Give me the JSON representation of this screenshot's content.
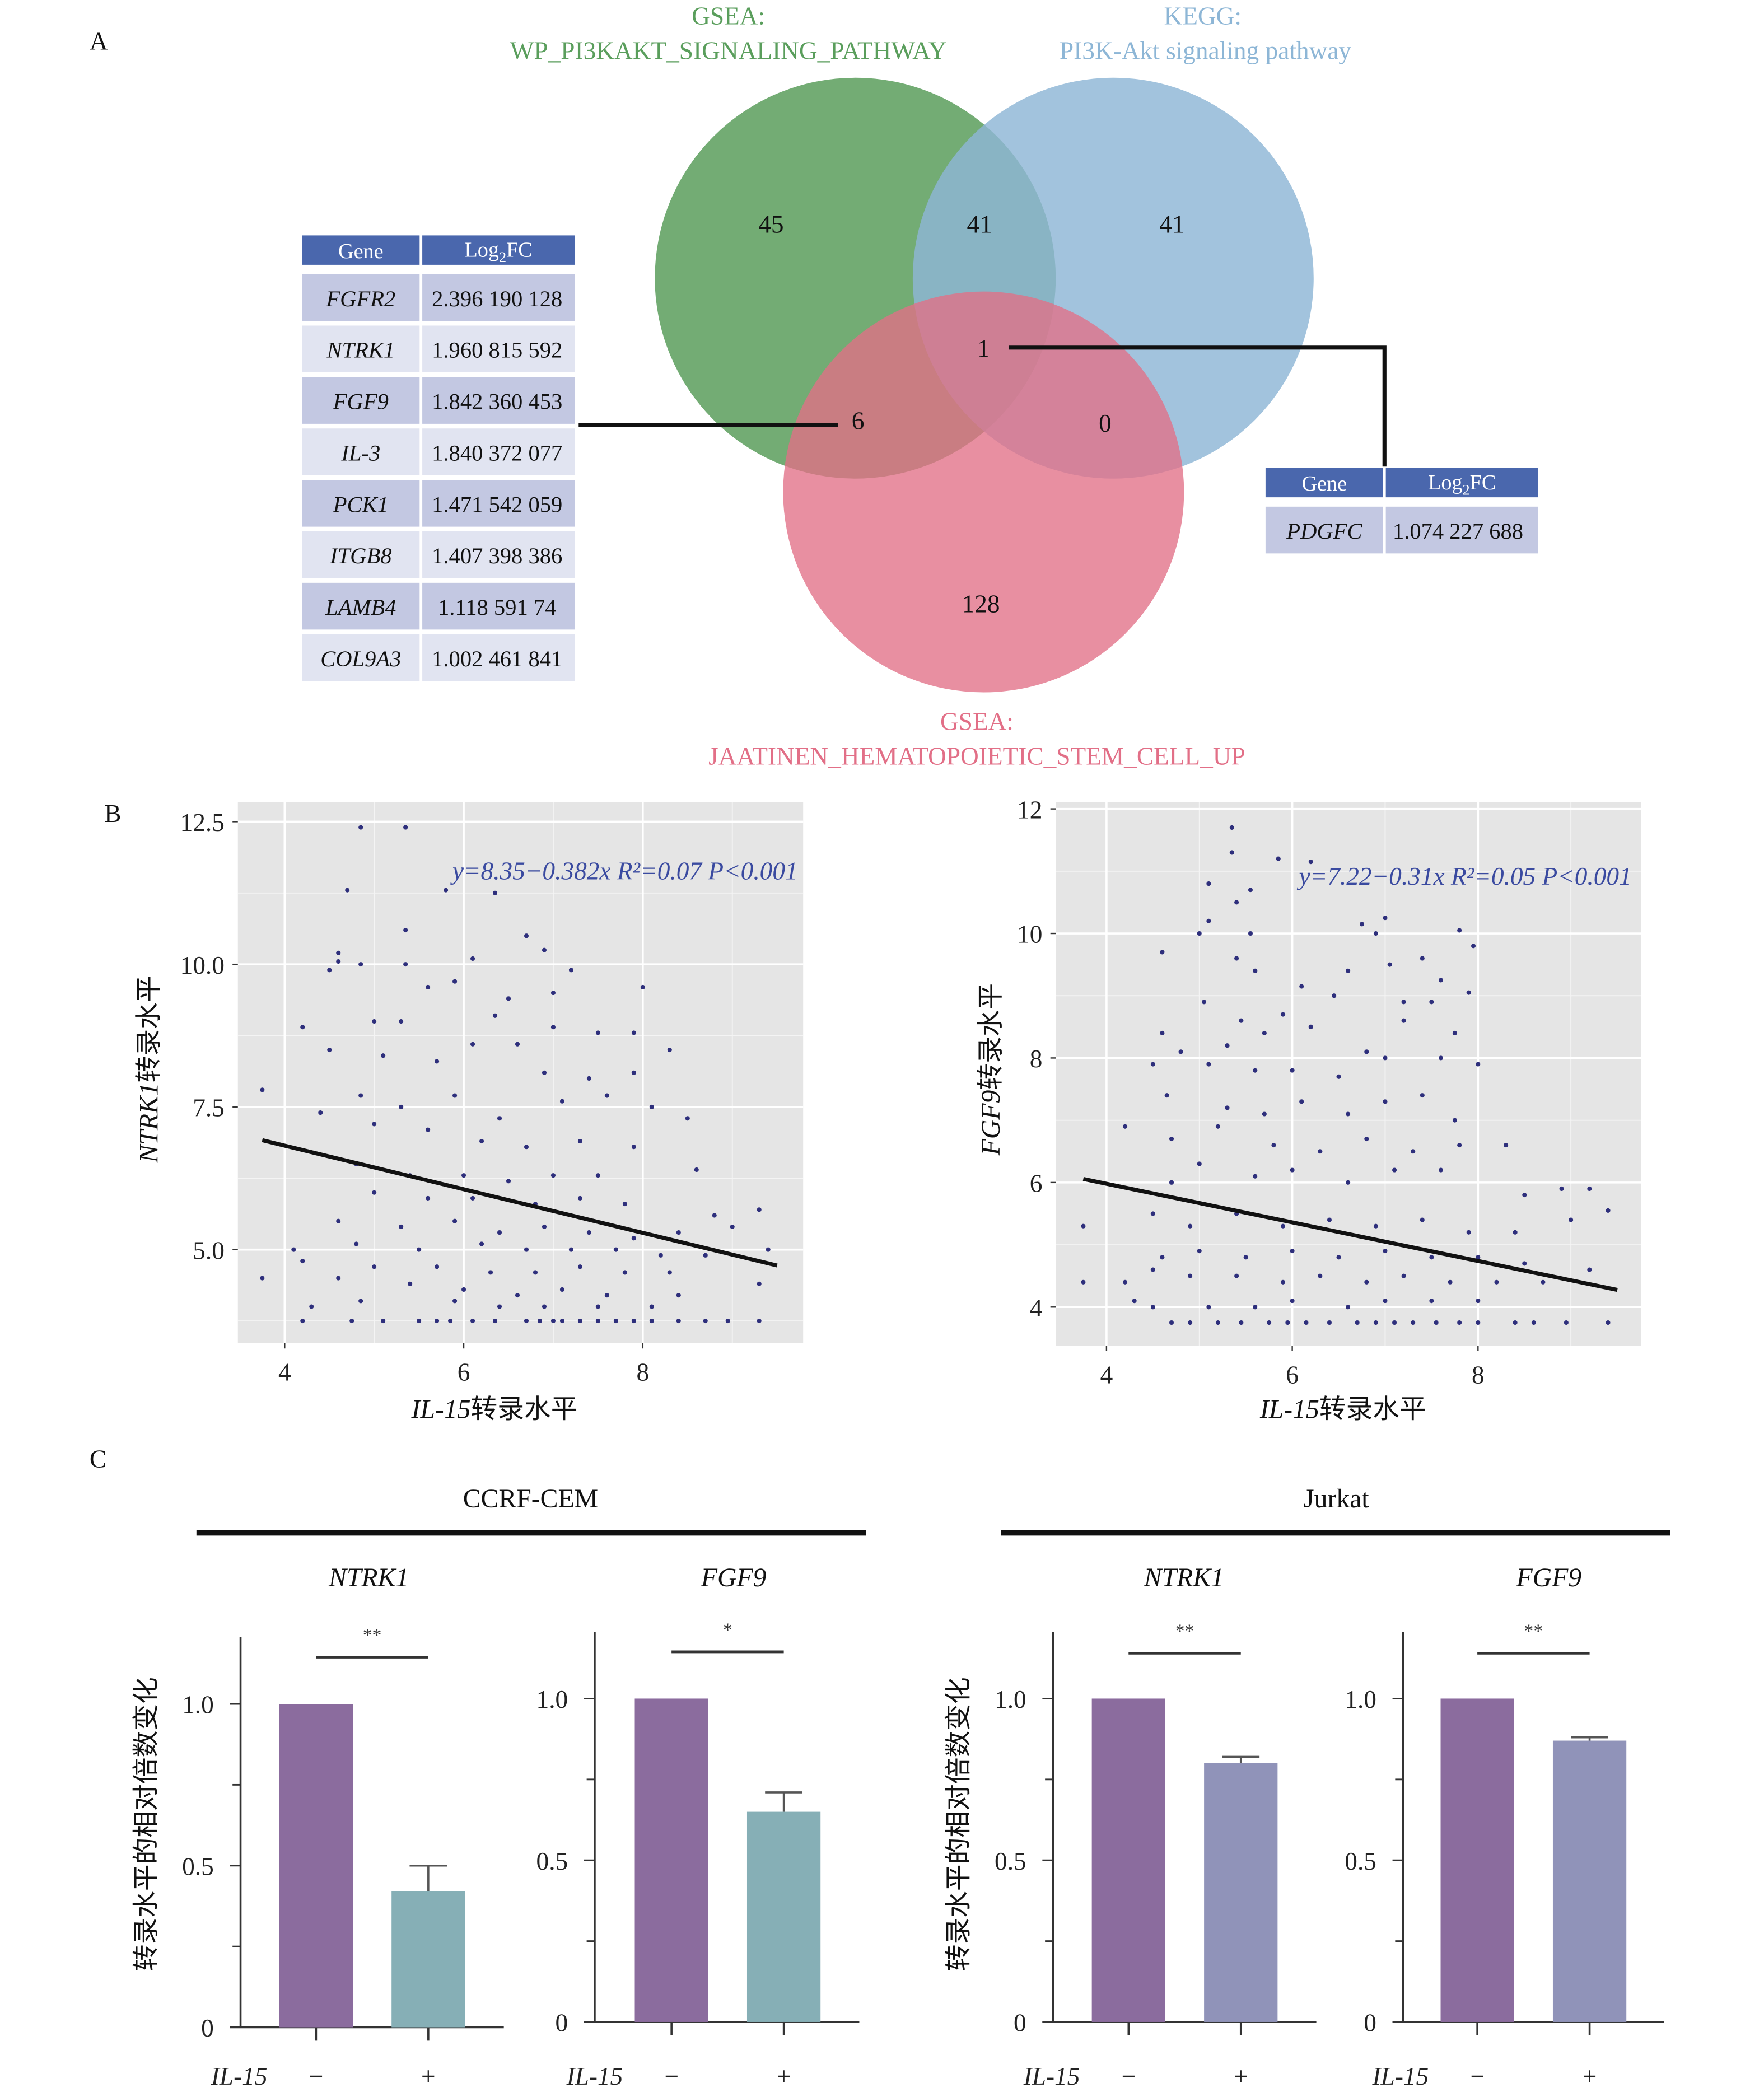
{
  "panel_labels": {
    "a": "A",
    "b": "B",
    "c": "C"
  },
  "venn": {
    "sets": [
      {
        "prefix": "GSEA:",
        "name": "WP_PI3KAKT_SIGNALING_PATHWAY",
        "color": "#5a9e5c"
      },
      {
        "prefix": "KEGG:",
        "name": "PI3K-Akt signaling pathway",
        "color": "#8db6d6"
      },
      {
        "prefix": "GSEA:",
        "name": "JAATINEN_HEMATOPOIETIC_STEM_CELL_UP",
        "color": "#e26f87"
      }
    ],
    "counts": {
      "wp_only": "45",
      "wp_kegg": "41",
      "kegg_only": "41",
      "all_three": "1",
      "wp_jaatinen": "6",
      "kegg_jaatinen": "0",
      "jaatinen_only": "128"
    }
  },
  "left_table": {
    "header": {
      "gene": "Gene",
      "logfc_prefix": "Log",
      "logfc_sub": "2",
      "logfc_suffix": "FC"
    },
    "rows": [
      {
        "gene": "FGFR2",
        "value": "2.396 190 128",
        "highlight": true
      },
      {
        "gene": "NTRK1",
        "value": "1.960 815 592",
        "highlight": true
      },
      {
        "gene": "FGF9",
        "value": "1.842 360 453",
        "highlight": true
      },
      {
        "gene": "IL-3",
        "value": "1.840 372 077",
        "highlight": false
      },
      {
        "gene": "PCK1",
        "value": "1.471 542 059",
        "highlight": false
      },
      {
        "gene": "ITGB8",
        "value": "1.407 398 386",
        "highlight": false
      },
      {
        "gene": "LAMB4",
        "value": "1.118 591 74",
        "highlight": false
      },
      {
        "gene": "COL9A3",
        "value": "1.002 461 841",
        "highlight": false
      }
    ]
  },
  "right_table": {
    "header": {
      "gene": "Gene",
      "logfc_prefix": "Log",
      "logfc_sub": "2",
      "logfc_suffix": "FC"
    },
    "rows": [
      {
        "gene": "PDGFC",
        "value": "1.074 227 688"
      }
    ]
  },
  "colors": {
    "table_header": "#4a67ad",
    "row_dark": "#c3c8e2",
    "row_light": "#e1e4f1",
    "highlight_text": "#e0202a",
    "point": "#2e2f7c",
    "panel_bg": "#e5e5e5",
    "bar_control": "#8b6c9e",
    "bar_ccrf_il15": "#86afb6",
    "bar_jurkat_il15": "#9093b9"
  },
  "chart_data": [
    {
      "type": "scatter",
      "xlabel_italic": "IL-15",
      "xlabel_rest": "转录水平",
      "ylabel_italic": "NTRK1",
      "ylabel_rest": "转录水平",
      "xlim": [
        3.5,
        9.8
      ],
      "ylim": [
        3.3,
        12.8
      ],
      "xticks": [
        "4",
        "6",
        "8"
      ],
      "yticks": [
        "5.0",
        "7.5",
        "10.0",
        "12.5"
      ],
      "annotation": "y=8.35−0.382x  R²=0.07  P<0.001",
      "regression": {
        "intercept": 8.35,
        "slope": -0.382,
        "x_range": [
          3.75,
          9.5
        ]
      },
      "grid": true,
      "points": [
        [
          4.85,
          12.4
        ],
        [
          5.35,
          12.4
        ],
        [
          4.7,
          11.3
        ],
        [
          5.8,
          11.3
        ],
        [
          6.35,
          11.25
        ],
        [
          5.35,
          10.6
        ],
        [
          6.7,
          10.5
        ],
        [
          4.6,
          10.2
        ],
        [
          4.6,
          10.05
        ],
        [
          4.85,
          10.0
        ],
        [
          5.35,
          10.0
        ],
        [
          6.9,
          10.25
        ],
        [
          6.1,
          10.1
        ],
        [
          7.2,
          9.9
        ],
        [
          8.0,
          9.6
        ],
        [
          4.5,
          9.9
        ],
        [
          5.6,
          9.6
        ],
        [
          5.9,
          9.7
        ],
        [
          6.5,
          9.4
        ],
        [
          7.0,
          9.5
        ],
        [
          4.2,
          8.9
        ],
        [
          5.0,
          9.0
        ],
        [
          5.3,
          9.0
        ],
        [
          6.35,
          9.1
        ],
        [
          7.0,
          8.9
        ],
        [
          7.5,
          8.8
        ],
        [
          7.9,
          8.8
        ],
        [
          8.3,
          8.5
        ],
        [
          4.5,
          8.5
        ],
        [
          5.1,
          8.4
        ],
        [
          5.7,
          8.3
        ],
        [
          6.1,
          8.6
        ],
        [
          6.6,
          8.6
        ],
        [
          6.9,
          8.1
        ],
        [
          7.4,
          8.0
        ],
        [
          7.9,
          8.1
        ],
        [
          3.75,
          7.8
        ],
        [
          4.85,
          7.7
        ],
        [
          5.3,
          7.5
        ],
        [
          5.9,
          7.7
        ],
        [
          6.4,
          7.3
        ],
        [
          7.1,
          7.6
        ],
        [
          7.6,
          7.7
        ],
        [
          8.1,
          7.5
        ],
        [
          8.5,
          7.3
        ],
        [
          4.4,
          7.4
        ],
        [
          5.0,
          7.2
        ],
        [
          5.6,
          7.1
        ],
        [
          6.2,
          6.9
        ],
        [
          6.7,
          6.8
        ],
        [
          7.3,
          6.9
        ],
        [
          7.9,
          6.8
        ],
        [
          4.8,
          6.5
        ],
        [
          5.4,
          6.3
        ],
        [
          6.0,
          6.3
        ],
        [
          6.5,
          6.2
        ],
        [
          7.0,
          6.3
        ],
        [
          7.5,
          6.3
        ],
        [
          8.6,
          6.4
        ],
        [
          5.0,
          6.0
        ],
        [
          5.6,
          5.9
        ],
        [
          6.1,
          5.9
        ],
        [
          6.8,
          5.8
        ],
        [
          7.3,
          5.9
        ],
        [
          7.8,
          5.8
        ],
        [
          8.8,
          5.6
        ],
        [
          9.3,
          5.7
        ],
        [
          4.6,
          5.5
        ],
        [
          5.3,
          5.4
        ],
        [
          5.9,
          5.5
        ],
        [
          6.4,
          5.3
        ],
        [
          6.9,
          5.4
        ],
        [
          7.4,
          5.3
        ],
        [
          7.9,
          5.2
        ],
        [
          8.4,
          5.3
        ],
        [
          9.0,
          5.4
        ],
        [
          4.1,
          5.0
        ],
        [
          4.8,
          5.1
        ],
        [
          5.5,
          5.0
        ],
        [
          6.2,
          5.1
        ],
        [
          6.7,
          5.0
        ],
        [
          7.2,
          5.0
        ],
        [
          7.7,
          5.0
        ],
        [
          8.2,
          4.9
        ],
        [
          8.7,
          4.9
        ],
        [
          9.4,
          5.0
        ],
        [
          4.2,
          4.8
        ],
        [
          5.0,
          4.7
        ],
        [
          5.7,
          4.7
        ],
        [
          6.3,
          4.6
        ],
        [
          6.8,
          4.6
        ],
        [
          7.3,
          4.7
        ],
        [
          7.8,
          4.6
        ],
        [
          8.3,
          4.6
        ],
        [
          3.75,
          4.5
        ],
        [
          4.6,
          4.5
        ],
        [
          5.4,
          4.4
        ],
        [
          6.0,
          4.3
        ],
        [
          6.6,
          4.2
        ],
        [
          7.1,
          4.3
        ],
        [
          7.6,
          4.2
        ],
        [
          8.4,
          4.2
        ],
        [
          9.3,
          4.4
        ],
        [
          4.3,
          4.0
        ],
        [
          4.85,
          4.1
        ],
        [
          5.9,
          4.1
        ],
        [
          6.4,
          4.0
        ],
        [
          6.9,
          4.0
        ],
        [
          7.5,
          4.0
        ],
        [
          8.1,
          4.0
        ],
        [
          4.2,
          3.75
        ],
        [
          4.75,
          3.75
        ],
        [
          5.1,
          3.75
        ],
        [
          5.5,
          3.75
        ],
        [
          5.7,
          3.75
        ],
        [
          5.85,
          3.75
        ],
        [
          6.1,
          3.75
        ],
        [
          6.35,
          3.75
        ],
        [
          6.7,
          3.75
        ],
        [
          6.85,
          3.75
        ],
        [
          7.0,
          3.75
        ],
        [
          7.1,
          3.75
        ],
        [
          7.3,
          3.75
        ],
        [
          7.5,
          3.75
        ],
        [
          7.7,
          3.75
        ],
        [
          7.9,
          3.75
        ],
        [
          8.1,
          3.75
        ],
        [
          8.4,
          3.75
        ],
        [
          8.7,
          3.75
        ],
        [
          8.95,
          3.75
        ],
        [
          9.3,
          3.75
        ]
      ]
    },
    {
      "type": "scatter",
      "xlabel_italic": "IL-15",
      "xlabel_rest": "转录水平",
      "ylabel_italic": "FGF9",
      "ylabel_rest": "转录水平",
      "xlim": [
        3.5,
        9.8
      ],
      "ylim": [
        3.4,
        12.1
      ],
      "xticks": [
        "4",
        "6",
        "8"
      ],
      "yticks": [
        "4",
        "6",
        "8",
        "10",
        "12"
      ],
      "annotation": "y=7.22−0.31x  R²=0.05  P<0.001",
      "regression": {
        "intercept": 7.22,
        "slope": -0.31,
        "x_range": [
          3.75,
          9.5
        ]
      },
      "grid": true,
      "points": [
        [
          5.35,
          11.7
        ],
        [
          5.35,
          11.3
        ],
        [
          5.85,
          11.2
        ],
        [
          6.2,
          11.15
        ],
        [
          5.1,
          10.8
        ],
        [
          5.55,
          10.7
        ],
        [
          5.4,
          10.5
        ],
        [
          5.0,
          10.0
        ],
        [
          5.55,
          10.0
        ],
        [
          6.75,
          10.15
        ],
        [
          7.0,
          10.25
        ],
        [
          6.9,
          10.0
        ],
        [
          7.8,
          10.05
        ],
        [
          7.95,
          9.8
        ],
        [
          5.1,
          10.2
        ],
        [
          4.6,
          9.7
        ],
        [
          5.4,
          9.6
        ],
        [
          5.6,
          9.4
        ],
        [
          6.1,
          9.15
        ],
        [
          6.6,
          9.4
        ],
        [
          7.05,
          9.5
        ],
        [
          7.4,
          9.6
        ],
        [
          7.6,
          9.25
        ],
        [
          7.9,
          9.05
        ],
        [
          5.05,
          8.9
        ],
        [
          5.45,
          8.6
        ],
        [
          5.9,
          8.7
        ],
        [
          6.45,
          9.0
        ],
        [
          7.2,
          8.9
        ],
        [
          7.5,
          8.9
        ],
        [
          4.6,
          8.4
        ],
        [
          5.3,
          8.2
        ],
        [
          5.7,
          8.4
        ],
        [
          6.2,
          8.5
        ],
        [
          6.8,
          8.1
        ],
        [
          7.2,
          8.6
        ],
        [
          7.75,
          8.4
        ],
        [
          4.5,
          7.9
        ],
        [
          4.8,
          8.1
        ],
        [
          5.1,
          7.9
        ],
        [
          5.6,
          7.8
        ],
        [
          6.0,
          7.8
        ],
        [
          6.5,
          7.7
        ],
        [
          7.0,
          8.0
        ],
        [
          7.6,
          8.0
        ],
        [
          8.0,
          7.9
        ],
        [
          4.65,
          7.4
        ],
        [
          5.3,
          7.2
        ],
        [
          5.7,
          7.1
        ],
        [
          6.1,
          7.3
        ],
        [
          6.6,
          7.1
        ],
        [
          7.0,
          7.3
        ],
        [
          7.4,
          7.4
        ],
        [
          7.75,
          7.0
        ],
        [
          4.2,
          6.9
        ],
        [
          4.7,
          6.7
        ],
        [
          5.2,
          6.9
        ],
        [
          5.8,
          6.6
        ],
        [
          6.3,
          6.5
        ],
        [
          6.8,
          6.7
        ],
        [
          7.3,
          6.5
        ],
        [
          7.8,
          6.6
        ],
        [
          8.3,
          6.6
        ],
        [
          4.7,
          6.0
        ],
        [
          5.0,
          6.3
        ],
        [
          5.6,
          6.1
        ],
        [
          6.0,
          6.2
        ],
        [
          6.6,
          6.0
        ],
        [
          7.1,
          6.2
        ],
        [
          7.6,
          6.2
        ],
        [
          8.5,
          5.8
        ],
        [
          8.9,
          5.9
        ],
        [
          9.2,
          5.9
        ],
        [
          3.75,
          5.3
        ],
        [
          4.5,
          5.5
        ],
        [
          4.9,
          5.3
        ],
        [
          5.4,
          5.5
        ],
        [
          5.9,
          5.3
        ],
        [
          6.4,
          5.4
        ],
        [
          6.9,
          5.3
        ],
        [
          7.4,
          5.4
        ],
        [
          7.9,
          5.2
        ],
        [
          8.4,
          5.2
        ],
        [
          9.0,
          5.4
        ],
        [
          9.4,
          5.55
        ],
        [
          4.6,
          4.8
        ],
        [
          5.0,
          4.9
        ],
        [
          5.5,
          4.8
        ],
        [
          6.0,
          4.9
        ],
        [
          6.5,
          4.8
        ],
        [
          7.0,
          4.9
        ],
        [
          7.5,
          4.8
        ],
        [
          8.0,
          4.8
        ],
        [
          8.5,
          4.7
        ],
        [
          9.2,
          4.6
        ],
        [
          3.75,
          4.4
        ],
        [
          4.2,
          4.4
        ],
        [
          4.5,
          4.6
        ],
        [
          4.9,
          4.5
        ],
        [
          5.4,
          4.5
        ],
        [
          5.9,
          4.4
        ],
        [
          6.3,
          4.5
        ],
        [
          6.8,
          4.4
        ],
        [
          7.2,
          4.5
        ],
        [
          7.7,
          4.4
        ],
        [
          8.2,
          4.4
        ],
        [
          8.7,
          4.4
        ],
        [
          4.3,
          4.1
        ],
        [
          4.5,
          4.0
        ],
        [
          5.1,
          4.0
        ],
        [
          5.6,
          4.0
        ],
        [
          6.0,
          4.1
        ],
        [
          6.6,
          4.0
        ],
        [
          7.0,
          4.1
        ],
        [
          7.5,
          4.1
        ],
        [
          8.0,
          4.1
        ],
        [
          4.7,
          3.75
        ],
        [
          4.9,
          3.75
        ],
        [
          5.2,
          3.75
        ],
        [
          5.45,
          3.75
        ],
        [
          5.75,
          3.75
        ],
        [
          5.95,
          3.75
        ],
        [
          6.15,
          3.75
        ],
        [
          6.4,
          3.75
        ],
        [
          6.7,
          3.75
        ],
        [
          6.9,
          3.75
        ],
        [
          7.1,
          3.75
        ],
        [
          7.3,
          3.75
        ],
        [
          7.55,
          3.75
        ],
        [
          7.8,
          3.75
        ],
        [
          8.0,
          3.75
        ],
        [
          8.4,
          3.75
        ],
        [
          8.6,
          3.75
        ],
        [
          8.95,
          3.75
        ],
        [
          9.4,
          3.75
        ]
      ]
    },
    {
      "type": "bar",
      "group": "CCRF-CEM",
      "title": "NTRK1",
      "categories": [
        "−",
        "+"
      ],
      "x_prefix": "IL-15",
      "values": [
        1.0,
        0.42
      ],
      "errors": [
        0,
        0.08
      ],
      "ylabel": "转录水平的相对倍数变化",
      "yticks": [
        "0",
        "0.5",
        "1.0"
      ],
      "ylim": [
        0,
        1.2
      ],
      "significance": "**"
    },
    {
      "type": "bar",
      "group": "CCRF-CEM",
      "title": "FGF9",
      "categories": [
        "−",
        "+"
      ],
      "x_prefix": "IL-15",
      "values": [
        1.0,
        0.65
      ],
      "errors": [
        0,
        0.06
      ],
      "yticks": [
        "0",
        "0.5",
        "1.0"
      ],
      "ylim": [
        0,
        1.2
      ],
      "significance": "*"
    },
    {
      "type": "bar",
      "group": "Jurkat",
      "title": "NTRK1",
      "categories": [
        "−",
        "+"
      ],
      "x_prefix": "IL-15",
      "values": [
        1.0,
        0.8
      ],
      "errors": [
        0,
        0.02
      ],
      "ylabel": "转录水平的相对倍数变化",
      "yticks": [
        "0",
        "0.5",
        "1.0"
      ],
      "ylim": [
        0,
        1.2
      ],
      "significance": "**"
    },
    {
      "type": "bar",
      "group": "Jurkat",
      "title": "FGF9",
      "categories": [
        "−",
        "+"
      ],
      "x_prefix": "IL-15",
      "values": [
        1.0,
        0.87
      ],
      "errors": [
        0,
        0.01
      ],
      "yticks": [
        "0",
        "0.5",
        "1.0"
      ],
      "ylim": [
        0,
        1.2
      ],
      "significance": "**"
    }
  ],
  "groups": [
    "CCRF-CEM",
    "Jurkat"
  ]
}
